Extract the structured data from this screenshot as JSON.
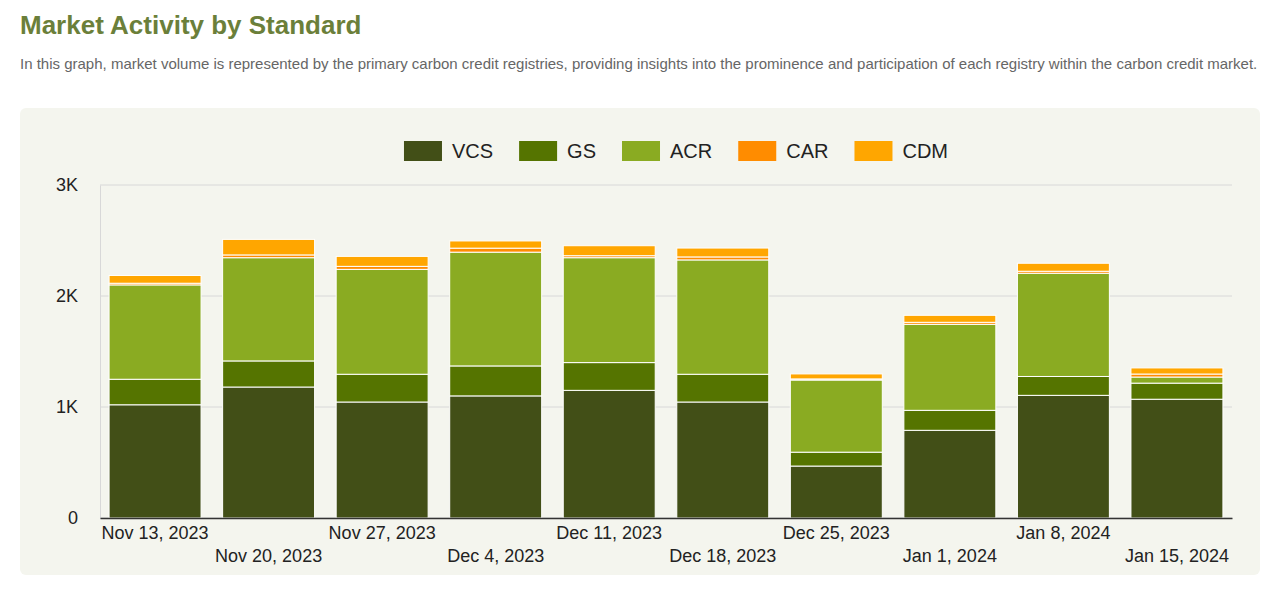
{
  "chart_data": {
    "type": "bar",
    "title": "Market Activity by Standard",
    "subtitle": "In this graph, market volume is represented by the primary carbon credit registries, providing insights into the prominence and participation of each registry within the carbon credit market.",
    "categories": [
      "Nov 13, 2023",
      "Nov 20, 2023",
      "Nov 27, 2023",
      "Dec 4, 2023",
      "Dec 11, 2023",
      "Dec 18, 2023",
      "Dec 25, 2023",
      "Jan 1, 2024",
      "Jan 8, 2024",
      "Jan 15, 2024"
    ],
    "series": [
      {
        "name": "VCS",
        "color": "#424f17",
        "values": [
          1020,
          1180,
          1045,
          1100,
          1150,
          1045,
          468,
          790,
          1105,
          1070
        ]
      },
      {
        "name": "GS",
        "color": "#557400",
        "values": [
          230,
          235,
          250,
          270,
          250,
          250,
          125,
          180,
          170,
          145
        ]
      },
      {
        "name": "ACR",
        "color": "#8aab22",
        "values": [
          850,
          930,
          945,
          1025,
          945,
          1030,
          650,
          775,
          930,
          55
        ]
      },
      {
        "name": "CAR",
        "color": "#ff8c00",
        "values": [
          15,
          25,
          27,
          36,
          18,
          27,
          10,
          18,
          18,
          27
        ]
      },
      {
        "name": "CDM",
        "color": "#ffa600",
        "values": [
          70,
          140,
          90,
          65,
          90,
          80,
          45,
          63,
          72,
          55
        ]
      }
    ],
    "ylim": [
      0,
      3000
    ],
    "yticks": [
      0,
      {
        "value": 1000,
        "label": "1K"
      },
      {
        "value": 2000,
        "label": "2K"
      },
      {
        "value": 3000,
        "label": "3K"
      }
    ],
    "stacked": true,
    "grid": true,
    "legend": "top"
  }
}
